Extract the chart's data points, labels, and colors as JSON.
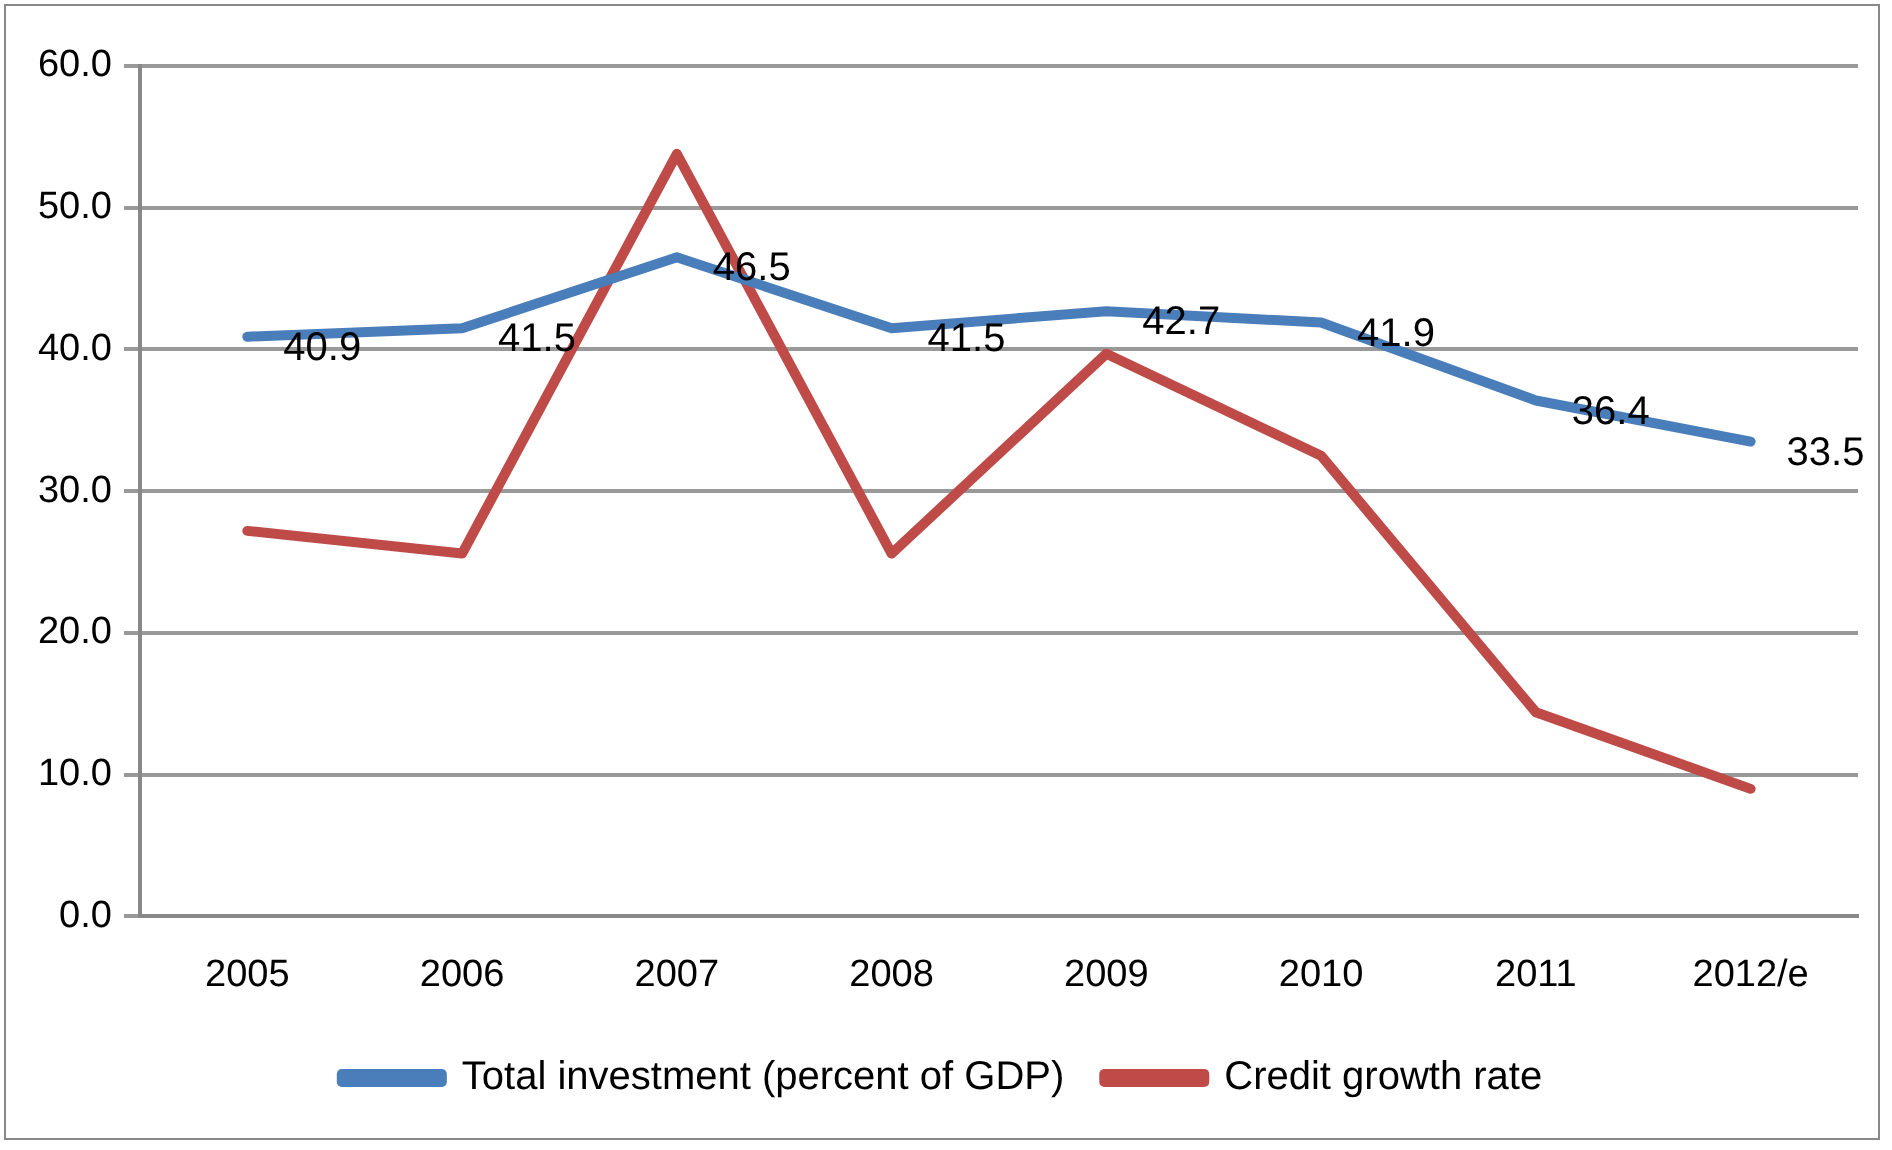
{
  "chart_data": {
    "type": "line",
    "categories": [
      "2005",
      "2006",
      "2007",
      "2008",
      "2009",
      "2010",
      "2011",
      "2012/e"
    ],
    "series": [
      {
        "name": "Total investment (percent of GDP)",
        "color": "#4a7ebb",
        "values": [
          40.9,
          41.5,
          46.5,
          41.5,
          42.7,
          41.9,
          36.4,
          33.5
        ],
        "value_labels": [
          "40.9",
          "41.5",
          "46.5",
          "41.5",
          "42.7",
          "41.9",
          "36.4",
          "33.5"
        ]
      },
      {
        "name": "Credit growth rate",
        "color": "#be4b48",
        "values": [
          27.2,
          25.6,
          53.8,
          25.6,
          39.7,
          32.5,
          14.4,
          9.0
        ]
      }
    ],
    "ylim": [
      0,
      60
    ],
    "yticks": [
      {
        "value": 0,
        "label": "0.0"
      },
      {
        "value": 10,
        "label": "10.0"
      },
      {
        "value": 20,
        "label": "20.0"
      },
      {
        "value": 30,
        "label": "30.0"
      },
      {
        "value": 40,
        "label": "40.0"
      },
      {
        "value": 50,
        "label": "50.0"
      },
      {
        "value": 60,
        "label": "60.0"
      }
    ],
    "grid": "y",
    "legend": "bottom",
    "marker": "none",
    "line_style": "solid"
  }
}
